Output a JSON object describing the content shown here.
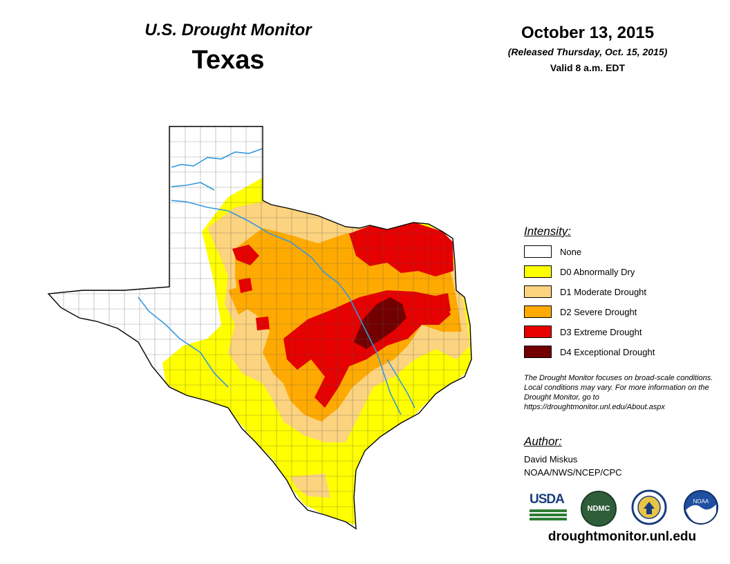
{
  "header": {
    "title": "U.S. Drought Monitor",
    "state": "Texas",
    "date": "October 13, 2015",
    "released": "(Released Thursday, Oct. 15, 2015)",
    "valid": "Valid 8 a.m. EDT"
  },
  "legend": {
    "title": "Intensity:",
    "items": [
      {
        "label": "None",
        "color": "#ffffff"
      },
      {
        "label": "D0 Abnormally Dry",
        "color": "#ffff00"
      },
      {
        "label": "D1 Moderate Drought",
        "color": "#fcd37f"
      },
      {
        "label": "D2 Severe Drought",
        "color": "#ffaa00"
      },
      {
        "label": "D3 Extreme Drought",
        "color": "#e60000"
      },
      {
        "label": "D4 Exceptional Drought",
        "color": "#730000"
      }
    ]
  },
  "note": "The Drought Monitor focuses on broad-scale conditions. Local conditions may vary. For more information on the Drought Monitor, go to https://droughtmonitor.unl.edu/About.aspx",
  "author": {
    "title": "Author:",
    "name": "David Miskus",
    "org": "NOAA/NWS/NCEP/CPC"
  },
  "logos": {
    "usda": "USDA",
    "ndmc": "NDMC",
    "doc": "dept-of-commerce-seal-icon",
    "noaa": "NOAA"
  },
  "website": "droughtmonitor.unl.edu",
  "colors": {
    "river": "#3399dd",
    "county_line": "#555555",
    "border": "#000000"
  }
}
